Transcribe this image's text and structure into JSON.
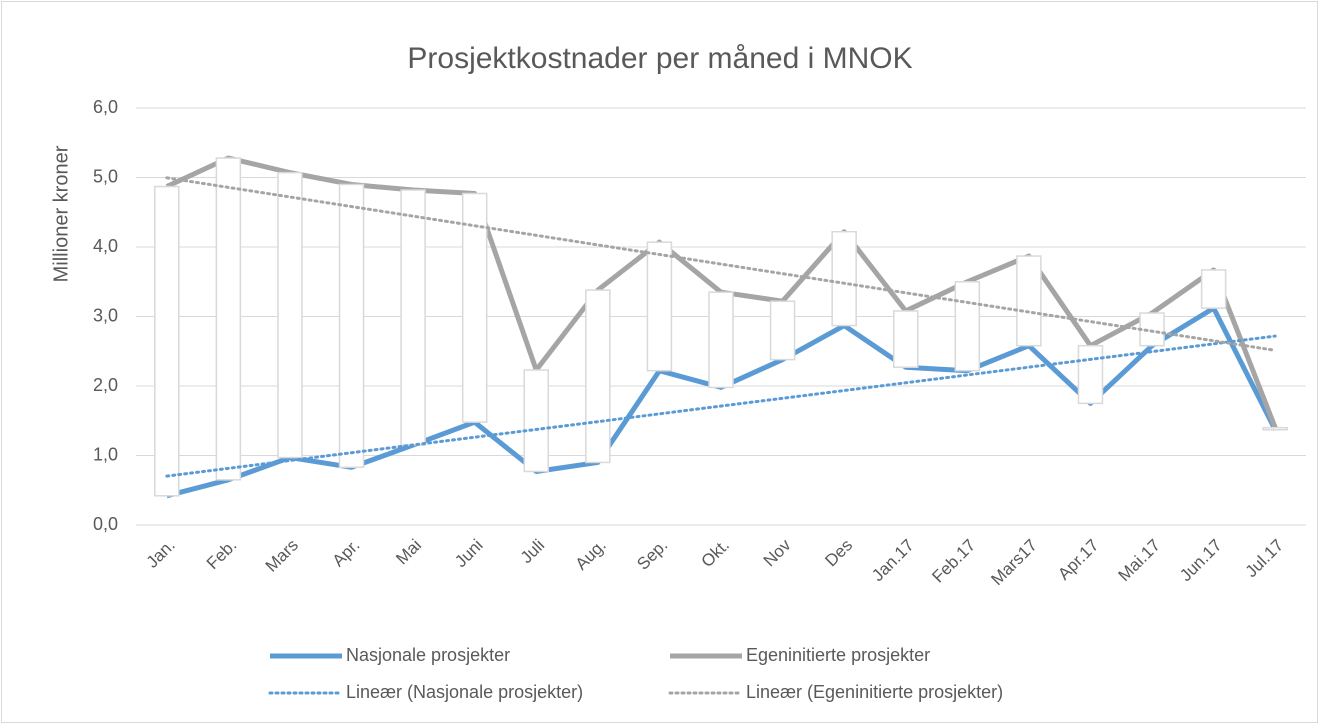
{
  "chart_data": {
    "type": "line",
    "title": "Prosjektkostnader per måned i MNOK",
    "y_label": "Millioner kroner",
    "categories": [
      "Jan.",
      "Feb.",
      "Mars",
      "Apr.",
      "Mai",
      "Juni",
      "Juli",
      "Aug.",
      "Sep.",
      "Okt.",
      "Nov",
      "Des",
      "Jan.17",
      "Feb.17",
      "Mars17",
      "Apr.17",
      "Mai.17",
      "Jun.17",
      "Jul.17"
    ],
    "series": [
      {
        "name": "Nasjonale prosjekter",
        "color": "#5b9bd5",
        "values": [
          0.42,
          0.65,
          0.97,
          0.83,
          1.15,
          1.48,
          0.77,
          0.9,
          2.22,
          1.98,
          2.38,
          2.87,
          2.27,
          2.22,
          2.58,
          1.75,
          2.58,
          3.12,
          1.37
        ]
      },
      {
        "name": "Egeninitierte prosjekter",
        "color": "#a5a5a5",
        "values": [
          4.87,
          5.28,
          5.07,
          4.9,
          4.82,
          4.77,
          2.23,
          3.38,
          4.07,
          3.35,
          3.22,
          4.22,
          3.08,
          3.5,
          3.87,
          2.58,
          3.05,
          3.67,
          1.4
        ]
      }
    ],
    "trendlines": [
      {
        "name": "Lineær (Nasjonale prosjekter)",
        "series": 0,
        "color": "#5b9bd5"
      },
      {
        "name": "Lineær (Egeninitierte prosjekter)",
        "series": 1,
        "color": "#a5a5a5"
      }
    ],
    "up_down_bars": true,
    "ylim": [
      0,
      6
    ],
    "yticks": [
      {
        "value": 0,
        "label": "0,0"
      },
      {
        "value": 1,
        "label": "1,0"
      },
      {
        "value": 2,
        "label": "2,0"
      },
      {
        "value": 3,
        "label": "3,0"
      },
      {
        "value": 4,
        "label": "4,0"
      },
      {
        "value": 5,
        "label": "5,0"
      },
      {
        "value": 6,
        "label": "6,0"
      }
    ],
    "grid": true,
    "legend": "bottom"
  }
}
